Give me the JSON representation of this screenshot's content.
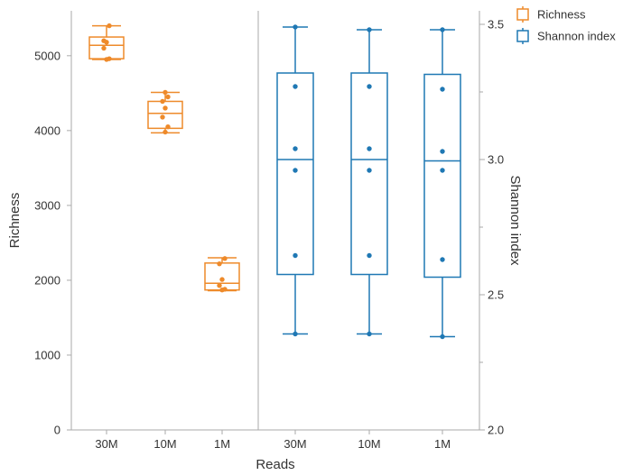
{
  "chart_data": {
    "type": "box",
    "xlabel": "Reads",
    "categories": [
      "30M",
      "10M",
      "1M"
    ],
    "axes": {
      "left": {
        "label": "Richness",
        "ylim": [
          0,
          5600
        ],
        "ticks": [
          0,
          1000,
          2000,
          3000,
          4000,
          5000
        ]
      },
      "right": {
        "label": "Shannon index",
        "ylim": [
          2.0,
          3.55
        ],
        "ticks": [
          2.0,
          2.5,
          3.0,
          3.5
        ],
        "tick_labels": [
          "2.0",
          "2.5",
          "3.0",
          "3.5"
        ]
      }
    },
    "legend": {
      "placement": "top-right",
      "entries": [
        "Richness",
        "Shannon index"
      ]
    },
    "grid": false,
    "series": [
      {
        "name": "Richness",
        "axis": "left",
        "color": "#ee8a2a",
        "boxes": [
          {
            "category": "30M",
            "whisker_low": 4950,
            "q1": 4960,
            "median": 5140,
            "q3": 5250,
            "whisker_high": 5400,
            "points": [
              4950,
              4960,
              5100,
              5180,
              5200,
              5400
            ]
          },
          {
            "category": "10M",
            "whisker_low": 3970,
            "q1": 4030,
            "median": 4230,
            "q3": 4390,
            "whisker_high": 4510,
            "points": [
              3980,
              4050,
              4180,
              4300,
              4390,
              4450,
              4510
            ]
          },
          {
            "category": "1M",
            "whisker_low": 1860,
            "q1": 1870,
            "median": 1960,
            "q3": 2230,
            "whisker_high": 2300,
            "points": [
              1870,
              1880,
              1930,
              2010,
              2220,
              2290
            ]
          }
        ]
      },
      {
        "name": "Shannon index",
        "axis": "right",
        "color": "#1f78b4",
        "boxes": [
          {
            "category": "30M",
            "whisker_low": 2.355,
            "q1": 2.575,
            "median": 3.0,
            "q3": 3.32,
            "whisker_high": 3.49,
            "points": [
              2.355,
              2.645,
              2.96,
              3.04,
              3.27,
              3.49
            ]
          },
          {
            "category": "10M",
            "whisker_low": 2.355,
            "q1": 2.575,
            "median": 3.0,
            "q3": 3.32,
            "whisker_high": 3.48,
            "points": [
              2.355,
              2.645,
              2.96,
              3.04,
              3.27,
              3.48
            ]
          },
          {
            "category": "1M",
            "whisker_low": 2.345,
            "q1": 2.565,
            "median": 2.995,
            "q3": 3.315,
            "whisker_high": 3.48,
            "points": [
              2.345,
              2.63,
              2.96,
              3.03,
              3.26,
              3.48
            ]
          }
        ]
      }
    ]
  }
}
